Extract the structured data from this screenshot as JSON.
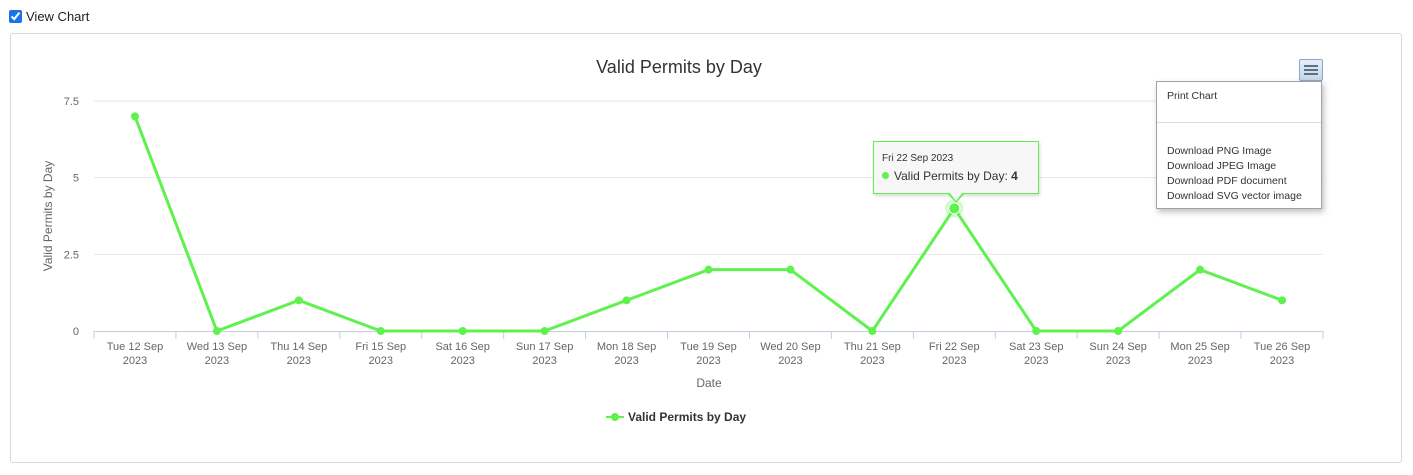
{
  "view_chart": {
    "label": "View Chart",
    "checked": true
  },
  "chart_data": {
    "type": "line",
    "title": "Valid Permits by Day",
    "xlabel": "Date",
    "ylabel": "Valid Permits by Day",
    "categories": [
      [
        "Tue 12 Sep",
        "2023"
      ],
      [
        "Wed 13 Sep",
        "2023"
      ],
      [
        "Thu 14 Sep",
        "2023"
      ],
      [
        "Fri 15 Sep",
        "2023"
      ],
      [
        "Sat 16 Sep",
        "2023"
      ],
      [
        "Sun 17 Sep",
        "2023"
      ],
      [
        "Mon 18 Sep",
        "2023"
      ],
      [
        "Tue 19 Sep",
        "2023"
      ],
      [
        "Wed 20 Sep",
        "2023"
      ],
      [
        "Thu 21 Sep",
        "2023"
      ],
      [
        "Fri 22 Sep",
        "2023"
      ],
      [
        "Sat 23 Sep",
        "2023"
      ],
      [
        "Sun 24 Sep",
        "2023"
      ],
      [
        "Mon 25 Sep",
        "2023"
      ],
      [
        "Tue 26 Sep",
        "2023"
      ]
    ],
    "series": [
      {
        "name": "Valid Permits by Day",
        "values": [
          7,
          0,
          1,
          0,
          0,
          0,
          1,
          2,
          2,
          0,
          4,
          0,
          0,
          2,
          1
        ]
      }
    ],
    "yticks": [
      0,
      2.5,
      5,
      7.5
    ],
    "ytick_labels": [
      "0",
      "2.5",
      "5",
      "7.5"
    ],
    "ylim": [
      0,
      7.5
    ],
    "grid": true,
    "legend": "bottom-center",
    "color": "#5ff14e"
  },
  "tooltip": {
    "date": "Fri 22 Sep 2023",
    "series_label": "Valid Permits by Day:",
    "value": "4",
    "index": 10
  },
  "menu": {
    "button_icon": "hamburger-menu-icon",
    "items": [
      "Print Chart",
      "Download PNG Image",
      "Download JPEG Image",
      "Download PDF document",
      "Download SVG vector image"
    ]
  }
}
